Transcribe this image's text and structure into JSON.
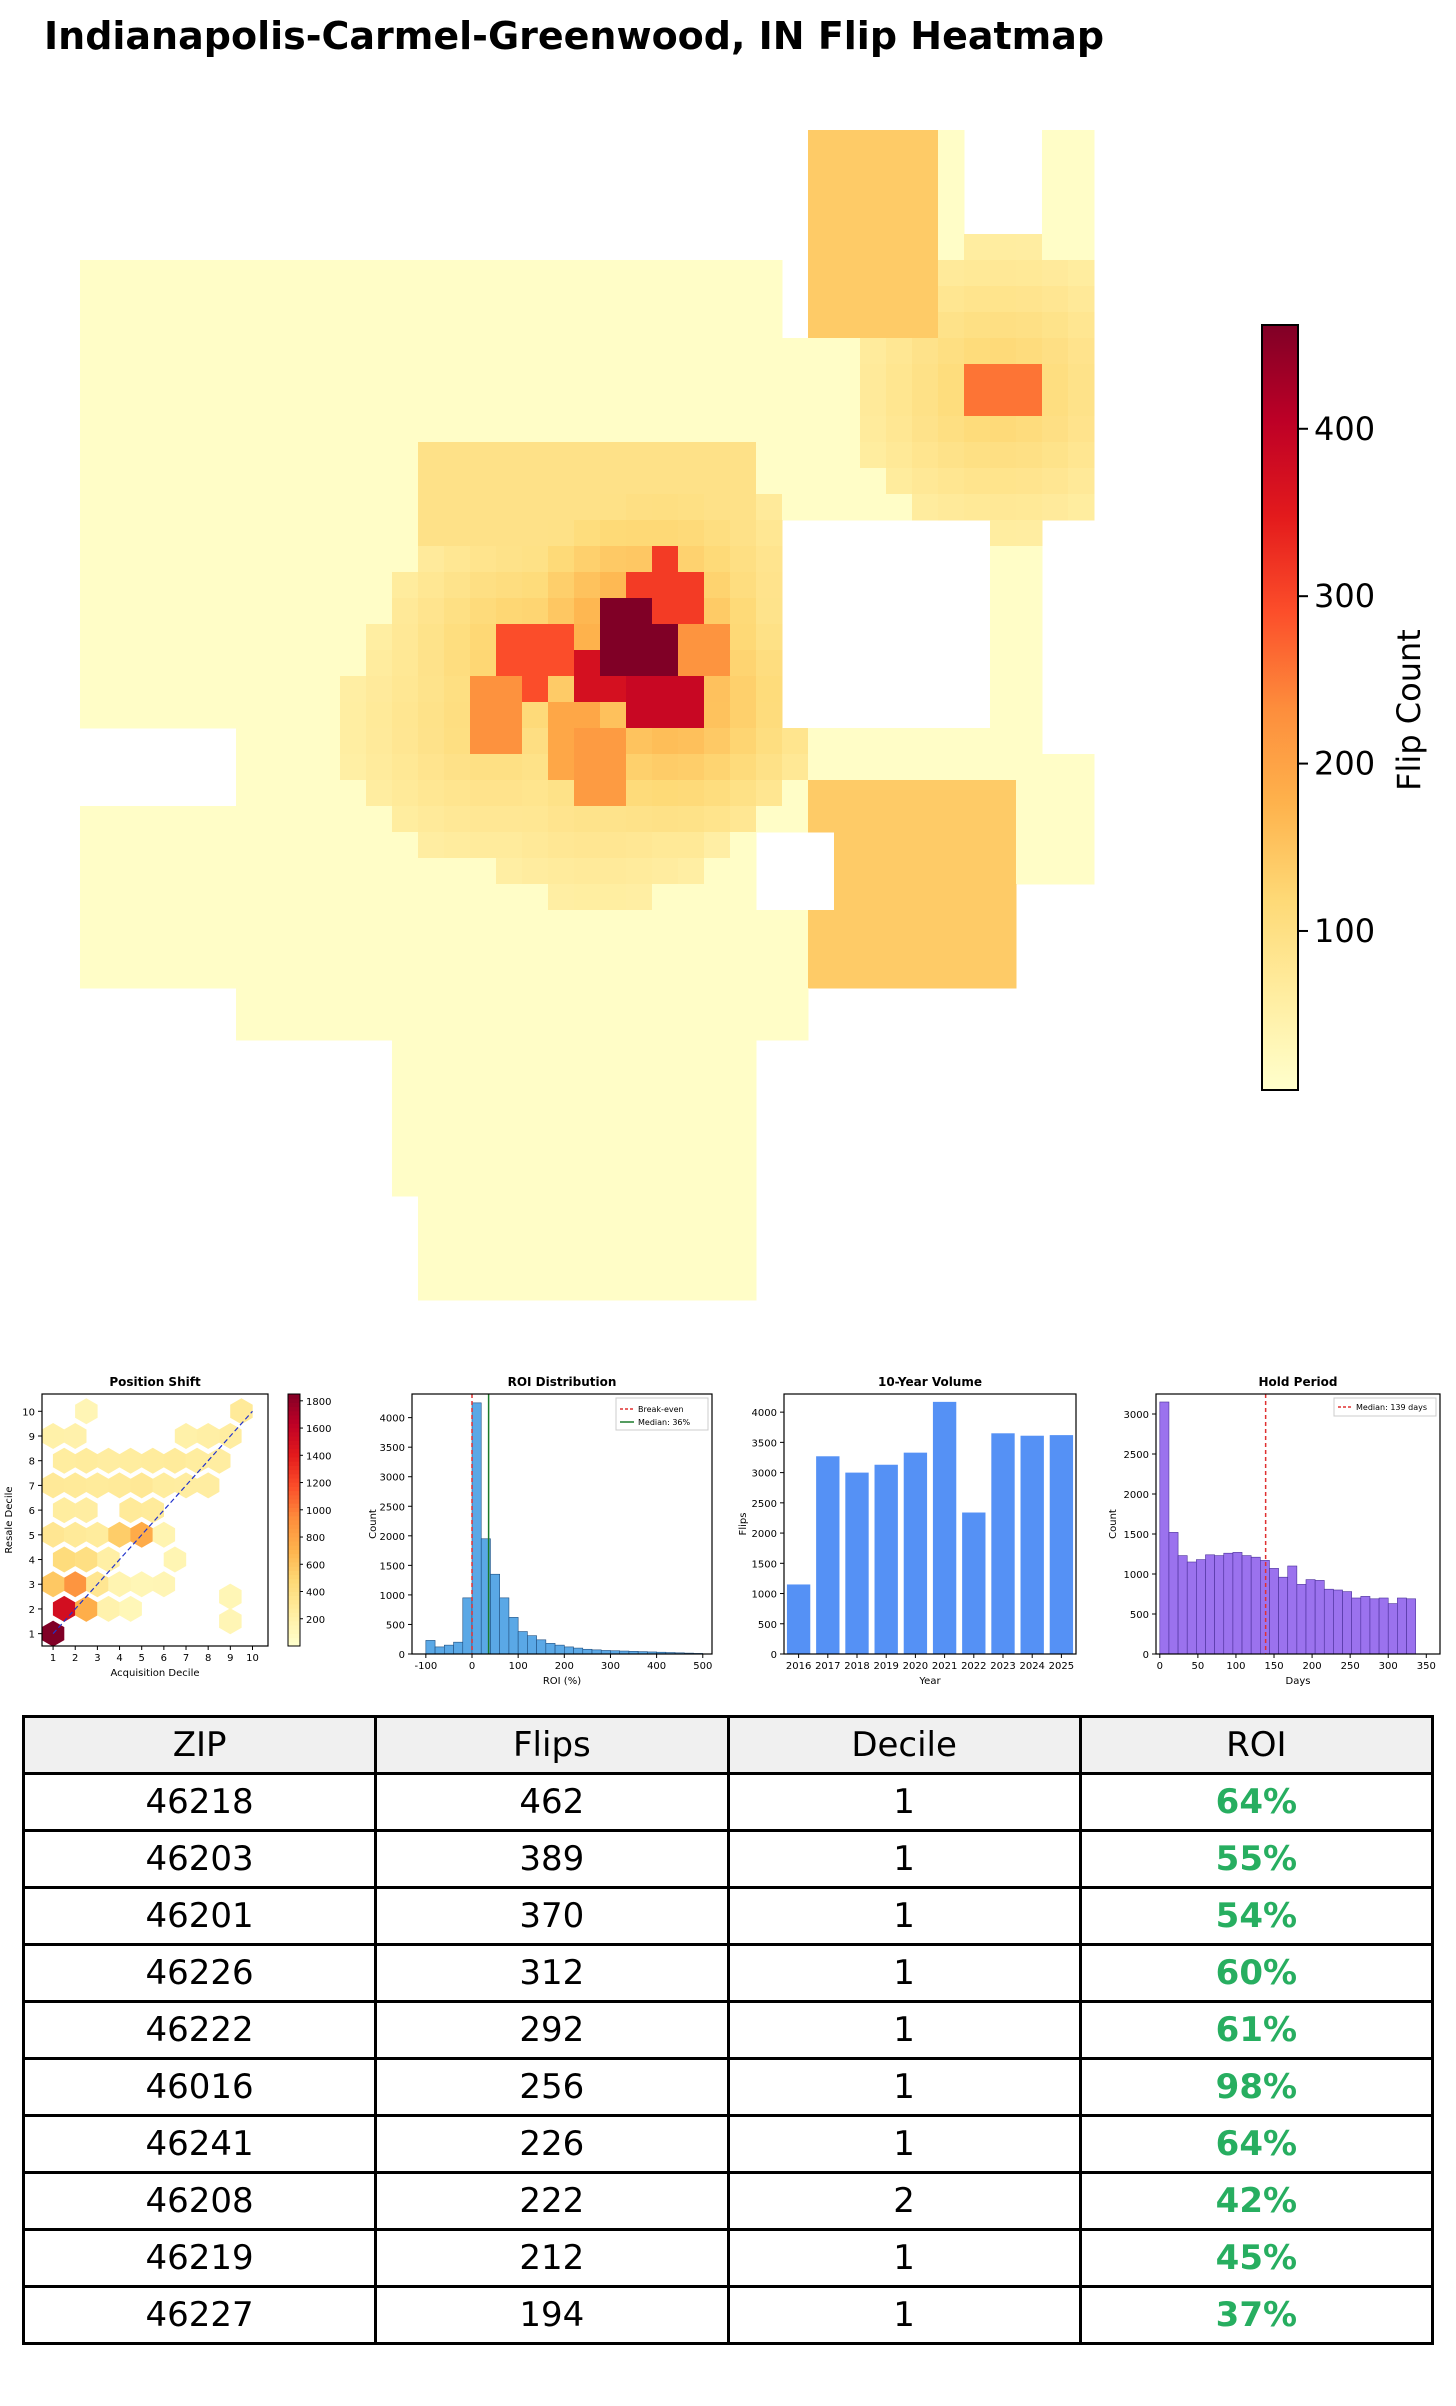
{
  "title": "Indianapolis-Carmel-Greenwood, IN Flip Heatmap",
  "colorbar": {
    "label": "Flip Count",
    "ticks": [
      100,
      200,
      300,
      400
    ],
    "min": 5,
    "max": 462,
    "colormap": "YlOrRd"
  },
  "chart_data": [
    {
      "type": "heatmap",
      "title": "Position Shift",
      "xlabel": "Acquisition Decile",
      "ylabel": "Resale Decile",
      "xticks": [
        1,
        2,
        3,
        4,
        5,
        6,
        7,
        8,
        9,
        10
      ],
      "yticks": [
        1,
        2,
        3,
        4,
        5,
        6,
        7,
        8,
        9,
        10
      ],
      "colorbar_ticks": [
        200,
        400,
        600,
        800,
        1000,
        1200,
        1400,
        1600,
        1800
      ],
      "vmax": 1800,
      "cells": [
        {
          "x": 1,
          "y": 1,
          "v": 1800
        },
        {
          "x": 1.5,
          "y": 2,
          "v": 1450
        },
        {
          "x": 2,
          "y": 3,
          "v": 850
        },
        {
          "x": 2.5,
          "y": 2,
          "v": 700
        },
        {
          "x": 1,
          "y": 3,
          "v": 550
        },
        {
          "x": 1.5,
          "y": 4,
          "v": 420
        },
        {
          "x": 2.5,
          "y": 4,
          "v": 380
        },
        {
          "x": 3,
          "y": 3,
          "v": 300
        },
        {
          "x": 1,
          "y": 5,
          "v": 300
        },
        {
          "x": 2,
          "y": 5,
          "v": 260
        },
        {
          "x": 3,
          "y": 5,
          "v": 240
        },
        {
          "x": 4,
          "y": 5,
          "v": 520
        },
        {
          "x": 5,
          "y": 5,
          "v": 720
        },
        {
          "x": 3.5,
          "y": 4,
          "v": 200
        },
        {
          "x": 1.5,
          "y": 6,
          "v": 230
        },
        {
          "x": 2.5,
          "y": 6,
          "v": 220
        },
        {
          "x": 4.5,
          "y": 6,
          "v": 260
        },
        {
          "x": 5.5,
          "y": 6,
          "v": 250
        },
        {
          "x": 1,
          "y": 7,
          "v": 270
        },
        {
          "x": 2,
          "y": 7,
          "v": 260
        },
        {
          "x": 3,
          "y": 7,
          "v": 250
        },
        {
          "x": 4,
          "y": 7,
          "v": 260
        },
        {
          "x": 5,
          "y": 7,
          "v": 280
        },
        {
          "x": 6,
          "y": 7,
          "v": 230
        },
        {
          "x": 7,
          "y": 7,
          "v": 220
        },
        {
          "x": 8,
          "y": 7,
          "v": 220
        },
        {
          "x": 1.5,
          "y": 8,
          "v": 230
        },
        {
          "x": 2.5,
          "y": 8,
          "v": 240
        },
        {
          "x": 3.5,
          "y": 8,
          "v": 220
        },
        {
          "x": 4.5,
          "y": 8,
          "v": 230
        },
        {
          "x": 5.5,
          "y": 8,
          "v": 240
        },
        {
          "x": 6.5,
          "y": 8,
          "v": 250
        },
        {
          "x": 7.5,
          "y": 8,
          "v": 230
        },
        {
          "x": 8.5,
          "y": 8,
          "v": 220
        },
        {
          "x": 1,
          "y": 9,
          "v": 180
        },
        {
          "x": 2,
          "y": 9,
          "v": 170
        },
        {
          "x": 7,
          "y": 9,
          "v": 180
        },
        {
          "x": 8,
          "y": 9,
          "v": 200
        },
        {
          "x": 9,
          "y": 9,
          "v": 220
        },
        {
          "x": 9.5,
          "y": 10,
          "v": 260
        },
        {
          "x": 2.5,
          "y": 10,
          "v": 120
        },
        {
          "x": 6,
          "y": 5,
          "v": 140
        },
        {
          "x": 6.5,
          "y": 4,
          "v": 130
        },
        {
          "x": 9,
          "y": 1.5,
          "v": 120
        },
        {
          "x": 9,
          "y": 2.5,
          "v": 110
        },
        {
          "x": 6,
          "y": 3,
          "v": 120
        },
        {
          "x": 5,
          "y": 3,
          "v": 110
        },
        {
          "x": 4,
          "y": 3,
          "v": 140
        },
        {
          "x": 3.5,
          "y": 2,
          "v": 160
        },
        {
          "x": 4.5,
          "y": 2,
          "v": 100
        }
      ]
    },
    {
      "type": "bar",
      "title": "ROI Distribution",
      "xlabel": "ROI (%)",
      "ylabel": "Count",
      "xlim": [
        -130,
        520
      ],
      "ylim": [
        0,
        4400
      ],
      "xticks": [
        -100,
        0,
        100,
        200,
        300,
        400,
        500
      ],
      "yticks": [
        0,
        500,
        1000,
        1500,
        2000,
        2500,
        3000,
        3500,
        4000
      ],
      "bin_width": 20,
      "bins_start": -100,
      "values": [
        230,
        120,
        150,
        200,
        950,
        4250,
        1950,
        1350,
        950,
        620,
        380,
        310,
        240,
        180,
        150,
        120,
        100,
        80,
        70,
        60,
        55,
        50,
        45,
        40,
        35,
        30,
        25,
        20,
        15,
        10
      ],
      "reference_lines": [
        {
          "name": "Break-even",
          "x": 0,
          "color": "#e03030",
          "style": "dashed"
        },
        {
          "name": "Median: 36%",
          "x": 36,
          "color": "#1a7a2a",
          "style": "solid"
        }
      ],
      "legend": "top-right"
    },
    {
      "type": "bar",
      "title": "10-Year Volume",
      "xlabel": "Year",
      "ylabel": "Flips",
      "ylim": [
        0,
        4300
      ],
      "yticks": [
        0,
        500,
        1000,
        1500,
        2000,
        2500,
        3000,
        3500,
        4000
      ],
      "categories": [
        "2016",
        "2017",
        "2018",
        "2019",
        "2020",
        "2021",
        "2022",
        "2023",
        "2024",
        "2025"
      ],
      "values": [
        1150,
        3270,
        3000,
        3130,
        3330,
        4170,
        2340,
        3650,
        3610,
        3620
      ]
    },
    {
      "type": "bar",
      "title": "Hold Period",
      "xlabel": "Days",
      "ylabel": "Count",
      "xlim": [
        -5,
        368
      ],
      "ylim": [
        0,
        3250
      ],
      "xticks": [
        0,
        50,
        100,
        150,
        200,
        250,
        300,
        350
      ],
      "yticks": [
        0,
        500,
        1000,
        1500,
        2000,
        2500,
        3000
      ],
      "bin_width": 12,
      "bins_start": 0,
      "values": [
        3150,
        1520,
        1230,
        1150,
        1180,
        1240,
        1230,
        1260,
        1270,
        1230,
        1210,
        1170,
        1070,
        960,
        1100,
        870,
        930,
        920,
        810,
        800,
        780,
        700,
        720,
        690,
        700,
        630,
        700,
        690
      ],
      "reference_lines": [
        {
          "name": "Median: 139 days",
          "x": 139,
          "color": "#e03030",
          "style": "dashed"
        }
      ],
      "legend": "top-right"
    },
    {
      "type": "table",
      "columns": [
        "ZIP",
        "Flips",
        "Decile",
        "ROI"
      ],
      "rows": [
        [
          "46218",
          "462",
          "1",
          "64%"
        ],
        [
          "46203",
          "389",
          "1",
          "55%"
        ],
        [
          "46201",
          "370",
          "1",
          "54%"
        ],
        [
          "46226",
          "312",
          "1",
          "60%"
        ],
        [
          "46222",
          "292",
          "1",
          "61%"
        ],
        [
          "46016",
          "256",
          "1",
          "98%"
        ],
        [
          "46241",
          "226",
          "1",
          "64%"
        ],
        [
          "46208",
          "222",
          "2",
          "42%"
        ],
        [
          "46219",
          "212",
          "1",
          "45%"
        ],
        [
          "46227",
          "194",
          "1",
          "37%"
        ]
      ]
    }
  ],
  "colors": {
    "roi_text": "#27ae60",
    "hold_bar": "#9b72ee",
    "volume_bar": "#5591f5",
    "roi_bar": "#5aa8e6"
  }
}
